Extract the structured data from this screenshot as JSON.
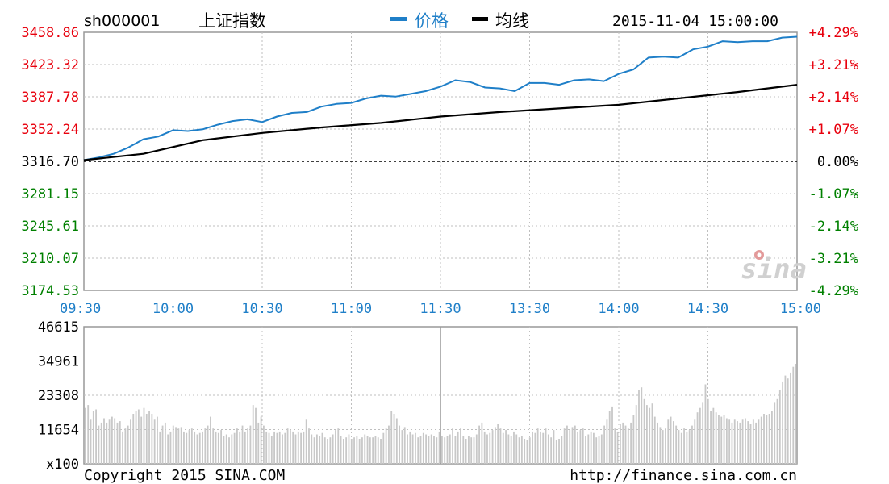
{
  "header": {
    "symbol": "sh000001",
    "name": "上证指数",
    "legend": [
      {
        "label": "价格",
        "color": "#1f7fc8"
      },
      {
        "label": "均线",
        "color": "#000000"
      }
    ],
    "datetime": "2015-11-04 15:00:00"
  },
  "footer": {
    "copyright": "Copyright 2015 SINA.COM",
    "url": "http://finance.sina.com.cn"
  },
  "watermark": "sina",
  "colors": {
    "up": "#e8000d",
    "down": "#008000",
    "neutral": "#000000",
    "price": "#1f7fc8",
    "avg": "#000000",
    "grid": "#bfbfbf",
    "time_label": "#1f7fc8",
    "volume": "#c8c8c8"
  },
  "chart_data": [
    {
      "type": "line",
      "title": "上证指数",
      "x_ticks": [
        "09:30",
        "10:00",
        "10:30",
        "11:00",
        "11:30",
        "13:30",
        "14:00",
        "14:30",
        "15:00"
      ],
      "y_ticks_left": [
        "3458.86",
        "3423.32",
        "3387.78",
        "3352.24",
        "3316.70",
        "3281.15",
        "3245.61",
        "3210.07",
        "3174.53"
      ],
      "y_ticks_right": [
        "+4.29%",
        "+3.21%",
        "+2.14%",
        "+1.07%",
        "0.00%",
        "-1.07%",
        "-2.14%",
        "-3.21%",
        "-4.29%"
      ],
      "ylim": [
        3174.53,
        3458.86
      ],
      "reference": 3316.7,
      "series": [
        {
          "name": "价格",
          "x": [
            0,
            5,
            10,
            15,
            20,
            25,
            30,
            35,
            40,
            45,
            50,
            55,
            60,
            65,
            70,
            75,
            80,
            85,
            90,
            95,
            100,
            105,
            110,
            115,
            120,
            125,
            130,
            135,
            140,
            145,
            150,
            155,
            160,
            165,
            170,
            175,
            180,
            185,
            190,
            195,
            200,
            205,
            210,
            215,
            220,
            225,
            230,
            235,
            240
          ],
          "values": [
            3318,
            3321,
            3325,
            3332,
            3341,
            3344,
            3351,
            3350,
            3352,
            3357,
            3361,
            3363,
            3360,
            3366,
            3370,
            3371,
            3377,
            3380,
            3381,
            3386,
            3389,
            3388,
            3391,
            3394,
            3399,
            3406,
            3404,
            3398,
            3397,
            3394,
            3403,
            3403,
            3401,
            3406,
            3407,
            3405,
            3413,
            3418,
            3431,
            3432,
            3431,
            3440,
            3443,
            3449,
            3448,
            3449,
            3449,
            3453,
            3454
          ]
        },
        {
          "name": "均线",
          "x": [
            0,
            20,
            40,
            60,
            80,
            100,
            120,
            140,
            160,
            180,
            200,
            220,
            240
          ],
          "values": [
            3318,
            3325,
            3340,
            3348,
            3354,
            3359,
            3366,
            3371,
            3375,
            3379,
            3386,
            3393,
            3401
          ]
        }
      ]
    },
    {
      "type": "bar",
      "title": "volume",
      "y_ticks": [
        "46615",
        "34961",
        "23308",
        "11654",
        "x100"
      ],
      "ylim": [
        0,
        46615
      ],
      "values": [
        19000,
        20000,
        15000,
        18000,
        18500,
        13000,
        14000,
        15500,
        14000,
        15000,
        16000,
        15500,
        14000,
        14500,
        11000,
        12000,
        13000,
        15000,
        17000,
        18000,
        18500,
        16000,
        19000,
        17000,
        18000,
        17000,
        15000,
        16000,
        11000,
        13000,
        14000,
        10000,
        11000,
        13000,
        12500,
        12000,
        12500,
        11000,
        10500,
        11500,
        12000,
        11000,
        10000,
        10500,
        11000,
        12000,
        13000,
        16000,
        12000,
        11000,
        10500,
        11500,
        9500,
        10000,
        9000,
        10000,
        10500,
        12000,
        11000,
        13000,
        11000,
        12000,
        13000,
        20000,
        19000,
        14000,
        16000,
        13000,
        11000,
        10500,
        9500,
        11000,
        10500,
        11000,
        10000,
        10500,
        12000,
        11500,
        11000,
        10000,
        11000,
        10500,
        11000,
        15000,
        12000,
        10000,
        9000,
        10000,
        9500,
        10500,
        9000,
        8500,
        9000,
        10000,
        11500,
        12000,
        9500,
        8500,
        9000,
        10000,
        8500,
        9000,
        9500,
        8500,
        9000,
        10000,
        9500,
        9000,
        9000,
        9500,
        9000,
        8500,
        10500,
        12000,
        13000,
        18000,
        17000,
        15500,
        13000,
        11500,
        12500,
        10000,
        11000,
        10000,
        10500,
        9000,
        9500,
        10500,
        10000,
        9500,
        10000,
        9500,
        9000,
        11000,
        9500,
        9000,
        9500,
        10000,
        12000,
        9500,
        11000,
        12000,
        9500,
        8500,
        9500,
        9000,
        9000,
        10000,
        13000,
        14000,
        11000,
        10000,
        10500,
        11500,
        12500,
        13500,
        12000,
        10500,
        11500,
        10000,
        9500,
        11000,
        10000,
        9000,
        9500,
        8500,
        8000,
        9000,
        11000,
        10500,
        12000,
        11000,
        10500,
        12000,
        10000,
        9000,
        11500,
        8000,
        8500,
        9500,
        12000,
        13000,
        11500,
        12500,
        13000,
        11000,
        11500,
        12000,
        9500,
        10000,
        11000,
        10500,
        9000,
        9500,
        10000,
        13000,
        15000,
        18000,
        19500,
        12000,
        11000,
        13500,
        14000,
        13000,
        12000,
        14000,
        16500,
        20000,
        25000,
        26000,
        22000,
        20000,
        19000,
        20500,
        16000,
        14000,
        12500,
        11500,
        12000,
        15000,
        16000,
        14500,
        13000,
        11500,
        10500,
        12000,
        11000,
        11500,
        13000,
        15000,
        17500,
        19000,
        21000,
        27000,
        22000,
        18000,
        19000,
        17500,
        16500,
        16000,
        16500,
        15500,
        15000,
        14000,
        15000,
        14500,
        14000,
        15000,
        15500,
        14500,
        13500,
        15000,
        14000,
        15000,
        16000,
        17000,
        16500,
        17000,
        18000,
        21000,
        22000,
        25000,
        28000,
        30000,
        29000,
        31000,
        33000,
        34000
      ]
    }
  ]
}
